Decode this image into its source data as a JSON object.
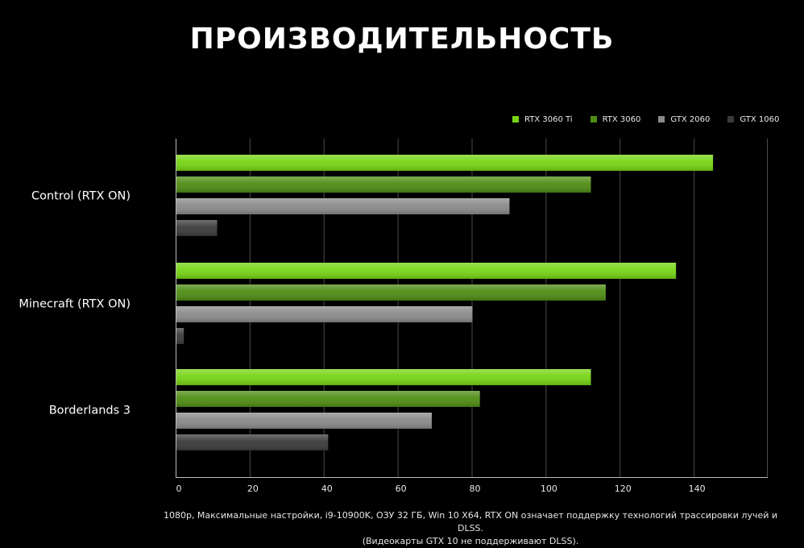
{
  "chart_data": {
    "type": "bar",
    "orientation": "horizontal",
    "title": "ПРОИЗВОДИТЕЛЬНОСТЬ",
    "categories": [
      "Control (RTX ON)",
      "Minecraft (RTX ON)",
      "Borderlands 3"
    ],
    "series": [
      {
        "name": "RTX 3060 Ti",
        "color": "#76d414",
        "values": [
          145,
          135,
          112
        ]
      },
      {
        "name": "RTX 3060",
        "color": "#4e8c14",
        "values": [
          112,
          116,
          82
        ]
      },
      {
        "name": "GTX 2060",
        "color": "#8a8a8a",
        "values": [
          90,
          80,
          69
        ]
      },
      {
        "name": "GTX 1060",
        "color": "#3a3a3a",
        "values": [
          11,
          2,
          41
        ]
      }
    ],
    "x_ticks": [
      "0",
      "20",
      "40",
      "60",
      "80",
      "100",
      "120",
      "140"
    ],
    "xlim": [
      0,
      160
    ],
    "legend_position": "top-right",
    "grid": true
  },
  "footnote": {
    "line1": "1080p, Максимальные настройки, i9-10900K, ОЗУ 32 ГБ, Win 10 X64, RTX ON означает поддержку технологий трассировки лучей и DLSS.",
    "line2": "(Видеокарты GTX 10 не поддерживают DLSS)."
  }
}
